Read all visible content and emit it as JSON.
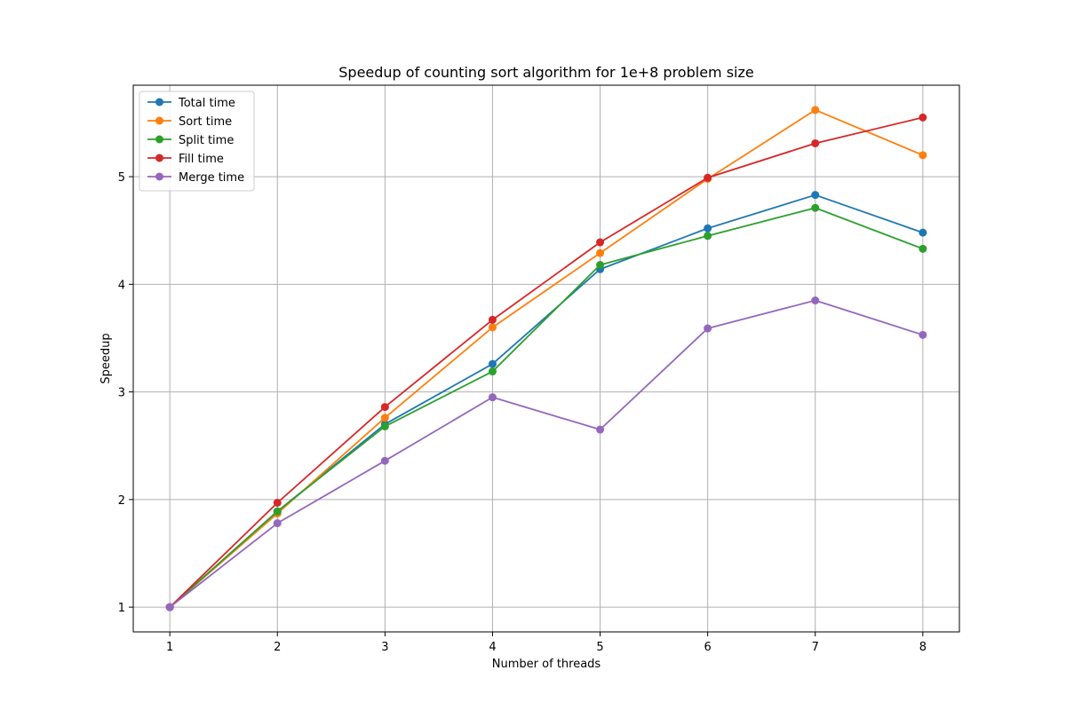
{
  "chart_data": {
    "type": "line",
    "title": "Speedup of counting sort algorithm for 1e+8 problem size",
    "xlabel": "Number of threads",
    "ylabel": "Speedup",
    "x": [
      1,
      2,
      3,
      4,
      5,
      6,
      7,
      8
    ],
    "xlim": [
      0.66,
      8.34
    ],
    "ylim": [
      0.77,
      5.85
    ],
    "xticks": [
      1,
      2,
      3,
      4,
      5,
      6,
      7,
      8
    ],
    "yticks": [
      1,
      2,
      3,
      4,
      5
    ],
    "grid": true,
    "legend_position": "upper-left",
    "series": [
      {
        "name": "Total time",
        "color": "#1f77b4",
        "values": [
          1.0,
          1.89,
          2.7,
          3.26,
          4.14,
          4.52,
          4.83,
          4.48
        ]
      },
      {
        "name": "Sort time",
        "color": "#ff7f0e",
        "values": [
          1.0,
          1.87,
          2.76,
          3.6,
          4.29,
          4.98,
          5.62,
          5.2
        ]
      },
      {
        "name": "Split time",
        "color": "#2ca02c",
        "values": [
          1.0,
          1.89,
          2.68,
          3.19,
          4.18,
          4.45,
          4.71,
          4.33
        ]
      },
      {
        "name": "Fill time",
        "color": "#d62728",
        "values": [
          1.0,
          1.97,
          2.86,
          3.67,
          4.39,
          4.99,
          5.31,
          5.55
        ]
      },
      {
        "name": "Merge time",
        "color": "#9467bd",
        "values": [
          1.0,
          1.78,
          2.36,
          2.95,
          2.65,
          3.59,
          3.85,
          3.53
        ]
      }
    ]
  }
}
